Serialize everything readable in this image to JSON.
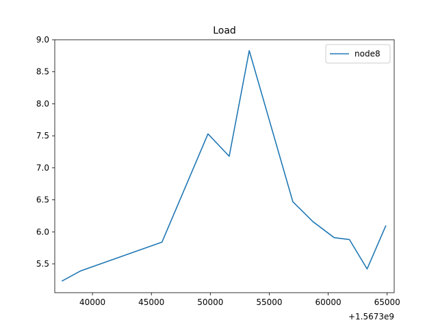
{
  "chart_data": {
    "type": "line",
    "title": "Load",
    "xlabel": "",
    "ylabel": "",
    "x_offset_label": "+1.5673e9",
    "xlim": [
      36800,
      65600
    ],
    "ylim": [
      5.05,
      9.0
    ],
    "xticks": [
      40000,
      45000,
      50000,
      55000,
      60000,
      65000
    ],
    "xtick_labels": [
      "40000",
      "45000",
      "50000",
      "55000",
      "60000",
      "65000"
    ],
    "yticks": [
      5.5,
      6.0,
      6.5,
      7.0,
      7.5,
      8.0,
      8.5,
      9.0
    ],
    "ytick_labels": [
      "5.5",
      "6.0",
      "6.5",
      "7.0",
      "7.5",
      "8.0",
      "8.5",
      "9.0"
    ],
    "grid": false,
    "legend_position": "top-right",
    "series": [
      {
        "name": "node8",
        "color": "#1f77b4",
        "x": [
          37400,
          39000,
          45900,
          49800,
          51600,
          53300,
          57000,
          58700,
          60500,
          61800,
          63300,
          64900
        ],
        "y": [
          5.23,
          5.39,
          5.84,
          7.53,
          7.18,
          8.83,
          6.47,
          6.16,
          5.91,
          5.88,
          5.42,
          6.1
        ]
      }
    ]
  }
}
